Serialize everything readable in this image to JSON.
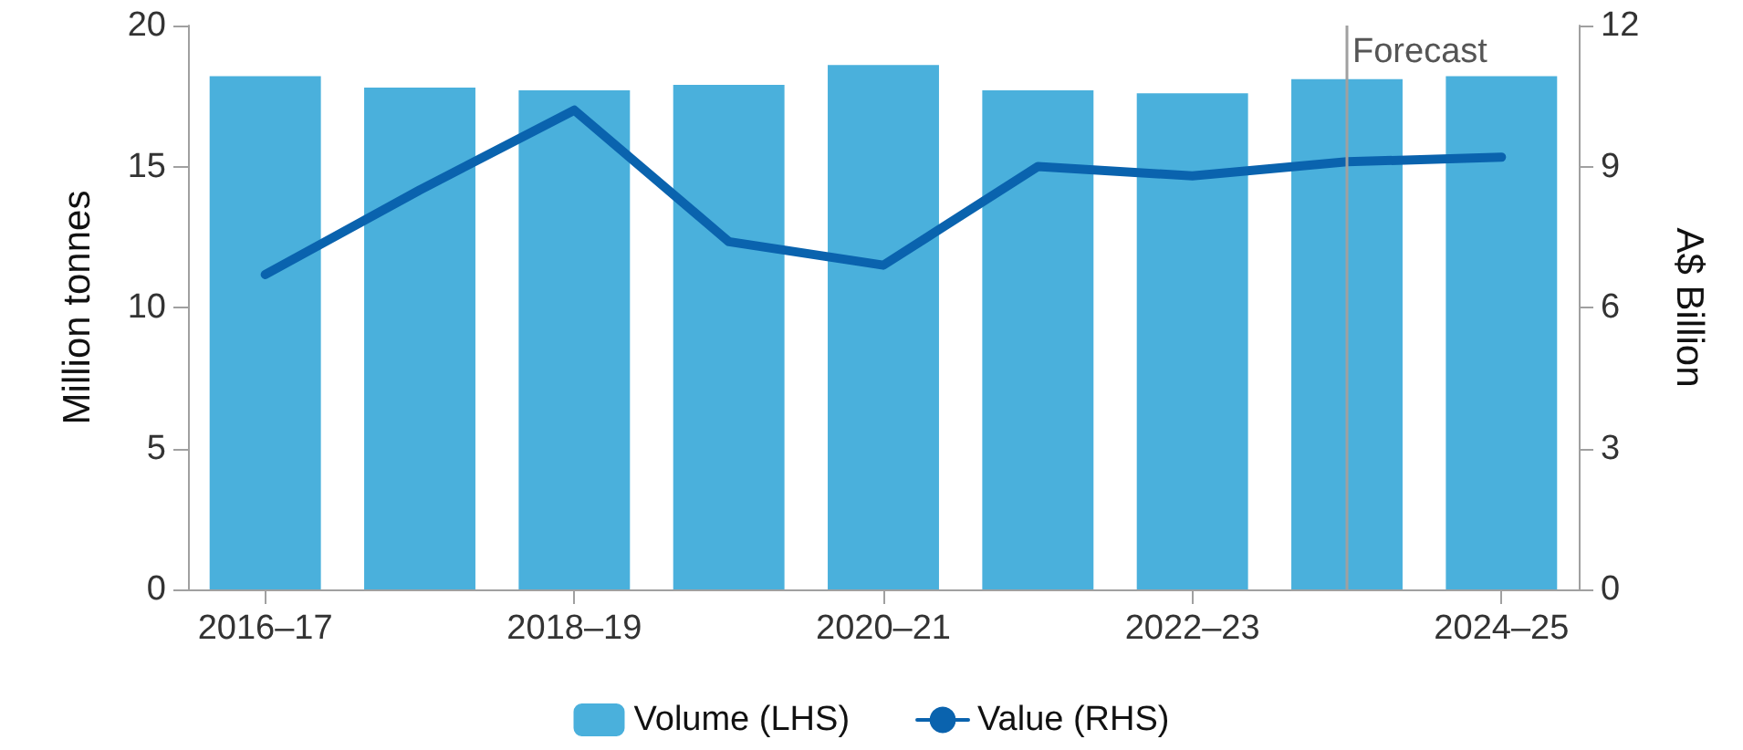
{
  "chart_data": {
    "type": "bar",
    "ylabel": "Million tonnes",
    "y2label": "A$ Billion",
    "categories": [
      "2016–17",
      null,
      "2018–19",
      null,
      "2020–21",
      null,
      "2022–23",
      null,
      "2024–25"
    ],
    "series": [
      {
        "name": "Volume (LHS)",
        "color": "#4ab0dc",
        "values": [
          18.2,
          17.8,
          17.7,
          17.9,
          18.6,
          17.7,
          17.6,
          18.1,
          18.2
        ]
      },
      {
        "name": "Value (RHS)",
        "type": "line",
        "axis": "y2",
        "color": "#0a63ae",
        "values": [
          6.7,
          8.5,
          10.2,
          7.4,
          6.9,
          9.0,
          8.8,
          9.1,
          9.2
        ]
      }
    ],
    "ylim": [
      0,
      20
    ],
    "yticks": [
      0,
      5,
      10,
      15,
      20
    ],
    "y2lim": [
      0,
      12
    ],
    "y2ticks": [
      0,
      3,
      6,
      9,
      12
    ],
    "annotations": [
      "Forecast"
    ],
    "legend": "bottom",
    "marker": "none"
  }
}
